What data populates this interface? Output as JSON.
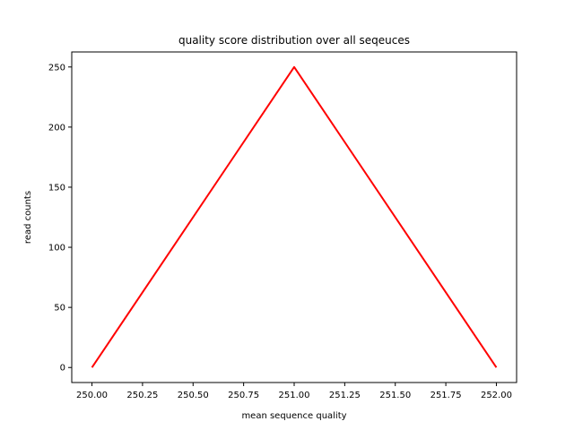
{
  "chart_data": {
    "type": "line",
    "title": "quality score distribution over all seqeuces",
    "xlabel": "mean sequence quality",
    "ylabel": "read counts",
    "xlim": [
      249.9,
      252.1
    ],
    "ylim": [
      -12.5,
      262.5
    ],
    "xticks": [
      250.0,
      250.25,
      250.5,
      250.75,
      251.0,
      251.25,
      251.5,
      251.75,
      252.0
    ],
    "xtick_labels": [
      "250.00",
      "250.25",
      "250.50",
      "250.75",
      "251.00",
      "251.25",
      "251.50",
      "251.75",
      "252.00"
    ],
    "yticks": [
      0,
      50,
      100,
      150,
      200,
      250
    ],
    "ytick_labels": [
      "0",
      "50",
      "100",
      "150",
      "200",
      "250"
    ],
    "grid": false,
    "series": [
      {
        "x": [
          250,
          251,
          252
        ],
        "y": [
          0,
          250,
          0
        ],
        "color": "#ff0000"
      }
    ]
  }
}
